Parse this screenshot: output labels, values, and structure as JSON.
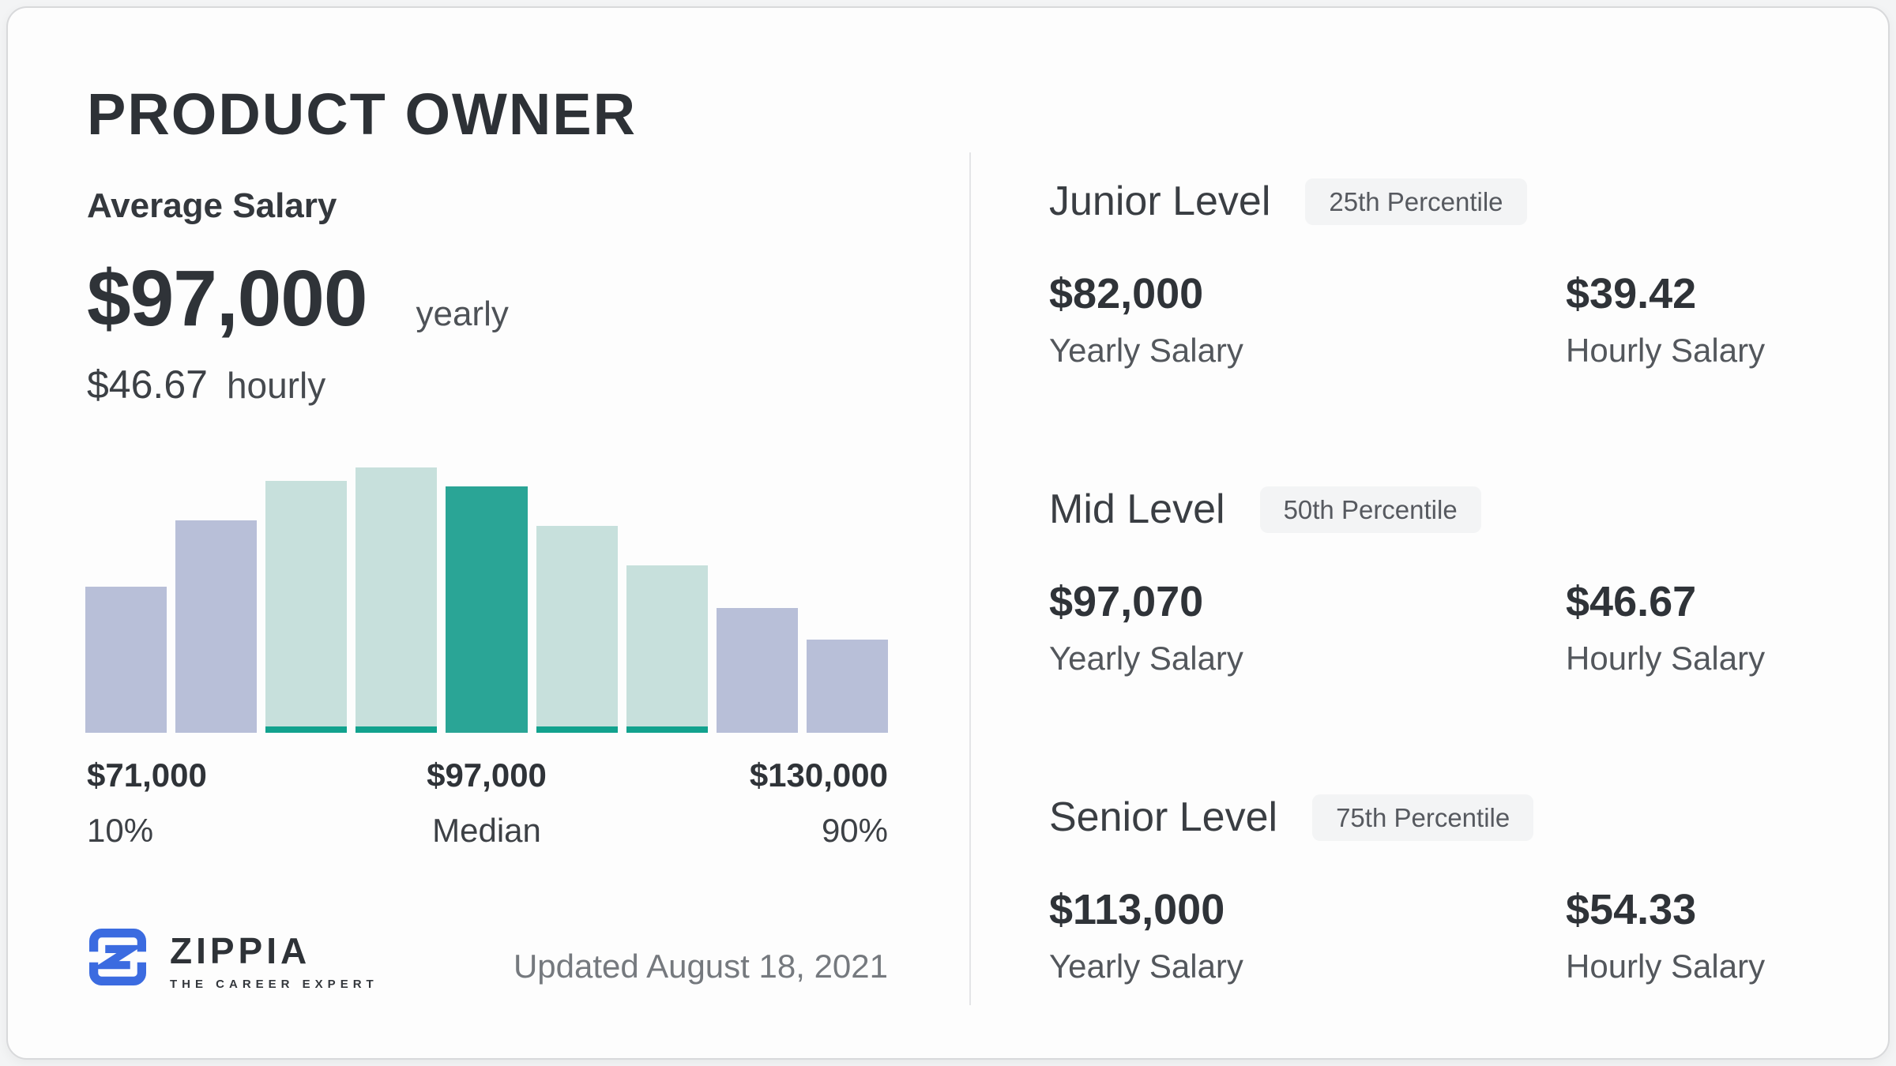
{
  "card": {
    "title": "PRODUCT OWNER"
  },
  "average": {
    "label": "Average Salary",
    "yearly_value": "$97,000",
    "yearly_unit": "yearly",
    "hourly_value": "$46.67",
    "hourly_unit": "hourly"
  },
  "chart_data": {
    "type": "bar",
    "title": "Salary distribution histogram",
    "values_relative_pct": [
      55,
      80,
      95,
      100,
      93,
      78,
      63,
      47,
      35
    ],
    "bars": [
      {
        "height_pct": 55,
        "color": "#b8bfd8",
        "underline": false
      },
      {
        "height_pct": 80,
        "color": "#b8bfd8",
        "underline": false
      },
      {
        "height_pct": 95,
        "color": "#c7e0dc",
        "underline": true
      },
      {
        "height_pct": 100,
        "color": "#c7e0dc",
        "underline": true
      },
      {
        "height_pct": 93,
        "color": "#2aa596",
        "underline": false
      },
      {
        "height_pct": 78,
        "color": "#c7e0dc",
        "underline": true
      },
      {
        "height_pct": 63,
        "color": "#c7e0dc",
        "underline": true
      },
      {
        "height_pct": 47,
        "color": "#b8bfd8",
        "underline": false
      },
      {
        "height_pct": 35,
        "color": "#b8bfd8",
        "underline": false
      }
    ],
    "underline_color": "#12a28e",
    "x_labels": [
      {
        "value": "$71,000",
        "caption": "10%"
      },
      {
        "value": "$97,000",
        "caption": "Median"
      },
      {
        "value": "$130,000",
        "caption": "90%"
      }
    ],
    "xlabel": "",
    "ylabel": "",
    "grid": false,
    "legend": "none"
  },
  "levels": [
    {
      "name": "Junior Level",
      "badge": "25th Percentile",
      "yearly": "$82,000",
      "yearly_label": "Yearly Salary",
      "hourly": "$39.42",
      "hourly_label": "Hourly Salary"
    },
    {
      "name": "Mid Level",
      "badge": "50th Percentile",
      "yearly": "$97,070",
      "yearly_label": "Yearly Salary",
      "hourly": "$46.67",
      "hourly_label": "Hourly Salary"
    },
    {
      "name": "Senior Level",
      "badge": "75th Percentile",
      "yearly": "$113,000",
      "yearly_label": "Yearly Salary",
      "hourly": "$54.33",
      "hourly_label": "Hourly Salary"
    }
  ],
  "footer": {
    "brand": "ZIPPIA",
    "tagline": "THE CAREER EXPERT",
    "updated": "Updated August 18, 2021"
  },
  "colors": {
    "accent_teal": "#2aa596",
    "light_teal": "#c7e0dc",
    "lavender": "#b8bfd8",
    "teal_underline": "#12a28e",
    "logo_blue": "#3b6be0",
    "badge_bg": "#f3f4f5"
  }
}
